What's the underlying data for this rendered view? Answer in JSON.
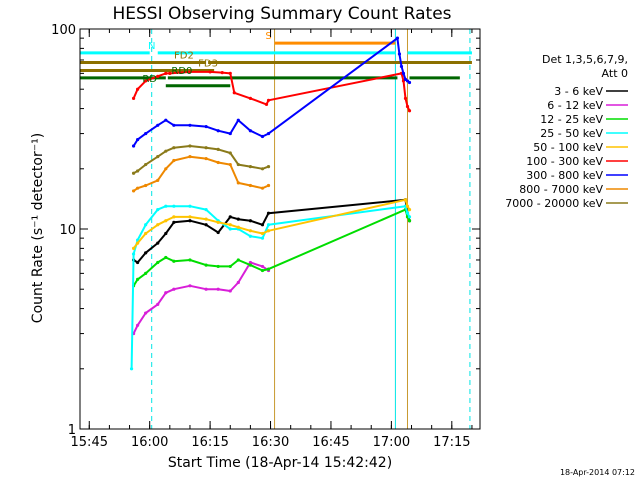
{
  "chart_data": {
    "type": "line",
    "title": "HESSI Observing Summary Count Rates",
    "xlabel": "Start Time (18-Apr-14 15:42:42)",
    "ylabel": "Count Rate (s⁻¹ detector⁻¹)",
    "y_scale": "log",
    "ylim": [
      1,
      100
    ],
    "xlim": [
      "15:42:42",
      "17:22:00"
    ],
    "x_ticks": [
      "15:45",
      "16:00",
      "16:15",
      "16:30",
      "16:45",
      "17:00",
      "17:15"
    ],
    "y_ticks": [
      "1",
      "10",
      "100"
    ],
    "grid": false,
    "legend_title": [
      "Det 1,3,5,6,7,9,",
      "Att 0"
    ],
    "legend_position": "right",
    "footer": "18-Apr-2014 07:12",
    "series": [
      {
        "name": "3 - 6 keV",
        "color": "#000000",
        "x": [
          "15:56:00",
          "15:57:00",
          "15:59:00",
          "16:02:00",
          "16:04:00",
          "16:06:00",
          "16:10:00",
          "16:14:00",
          "16:17:00",
          "16:20:00",
          "16:22:00",
          "16:25:00",
          "16:28:00",
          "16:29:30",
          "17:03:30",
          "17:04:00",
          "17:04:30"
        ],
        "values": [
          7.0,
          6.8,
          7.6,
          8.5,
          9.5,
          10.8,
          11.0,
          10.5,
          9.6,
          11.5,
          11.2,
          11.0,
          10.5,
          12.0,
          14.0,
          12.0,
          11.0
        ]
      },
      {
        "name": "6 - 12 keV",
        "color": "#d81ed8",
        "x": [
          "15:56:00",
          "15:57:00",
          "15:59:00",
          "16:02:00",
          "16:04:00",
          "16:06:00",
          "16:10:00",
          "16:14:00",
          "16:17:00",
          "16:20:00",
          "16:22:00",
          "16:25:00",
          "16:28:00",
          "16:29:30"
        ],
        "values": [
          3.0,
          3.3,
          3.8,
          4.2,
          4.8,
          5.0,
          5.2,
          5.0,
          5.0,
          4.9,
          5.4,
          6.8,
          6.5,
          6.2
        ]
      },
      {
        "name": "12 - 25 keV",
        "color": "#00dd00",
        "x": [
          "15:56:00",
          "15:57:00",
          "15:59:00",
          "16:02:00",
          "16:04:00",
          "16:06:00",
          "16:10:00",
          "16:14:00",
          "16:17:00",
          "16:20:00",
          "16:22:00",
          "16:25:00",
          "16:28:00",
          "16:29:30",
          "17:03:30",
          "17:04:00",
          "17:04:30"
        ],
        "values": [
          5.2,
          5.6,
          6.0,
          6.8,
          7.2,
          6.9,
          7.0,
          6.6,
          6.5,
          6.5,
          7.0,
          6.6,
          6.2,
          6.3,
          12.5,
          11.5,
          11.0
        ]
      },
      {
        "name": "25 - 50 keV",
        "color": "#00ffff",
        "x": [
          "15:55:30",
          "15:56:00",
          "15:57:00",
          "15:59:00",
          "16:02:00",
          "16:04:00",
          "16:06:00",
          "16:10:00",
          "16:14:00",
          "16:17:00",
          "16:20:00",
          "16:22:00",
          "16:25:00",
          "16:28:00",
          "16:29:30",
          "17:03:30",
          "17:04:00",
          "17:04:30"
        ],
        "values": [
          2.0,
          7.5,
          8.8,
          10.5,
          12.5,
          13.0,
          13.0,
          13.0,
          12.5,
          11.0,
          10.0,
          10.0,
          9.2,
          9.0,
          10.5,
          13.0,
          12.0,
          11.5
        ]
      },
      {
        "name": "50 - 100 keV",
        "color": "#ffc400",
        "x": [
          "15:56:00",
          "15:57:00",
          "15:59:00",
          "16:02:00",
          "16:04:00",
          "16:06:00",
          "16:10:00",
          "16:14:00",
          "16:17:00",
          "16:20:00",
          "16:22:00",
          "16:25:00",
          "16:28:00",
          "16:29:30",
          "17:03:30",
          "17:04:00",
          "17:04:30"
        ],
        "values": [
          8.0,
          8.5,
          9.5,
          10.5,
          11.0,
          11.5,
          11.5,
          11.2,
          10.8,
          10.5,
          10.2,
          9.8,
          9.5,
          9.8,
          14.0,
          13.0,
          12.5
        ]
      },
      {
        "name": "100 - 300 keV",
        "color": "#ff0000",
        "x": [
          "15:56:00",
          "15:57:00",
          "15:59:00",
          "16:02:00",
          "16:04:00",
          "16:05:00",
          "16:10:00",
          "16:15:00",
          "16:18:00",
          "16:20:00",
          "16:21:00",
          "16:25:00",
          "16:29:00",
          "16:29:30",
          "17:02:30",
          "17:03:00",
          "17:03:30",
          "17:04:00",
          "17:04:30"
        ],
        "values": [
          45.0,
          50.0,
          55.0,
          58.0,
          60.0,
          60.0,
          61.0,
          61.0,
          60.5,
          60.0,
          48.0,
          45.0,
          42.0,
          44.0,
          60.0,
          55.0,
          45.0,
          41.0,
          39.0
        ]
      },
      {
        "name": "300 - 800 keV",
        "color": "#0000ff",
        "x": [
          "15:56:00",
          "15:57:00",
          "15:59:00",
          "16:02:00",
          "16:04:00",
          "16:06:00",
          "16:10:00",
          "16:14:00",
          "16:17:00",
          "16:20:00",
          "16:22:00",
          "16:25:00",
          "16:28:00",
          "16:29:30",
          "17:01:30",
          "17:02:00",
          "17:02:30",
          "17:03:00",
          "17:03:30",
          "17:04:00",
          "17:04:30"
        ],
        "values": [
          26.0,
          28.0,
          30.0,
          33.0,
          35.0,
          33.0,
          33.0,
          32.5,
          31.0,
          30.0,
          35.0,
          31.0,
          29.0,
          30.0,
          90.0,
          75.0,
          65.0,
          60.0,
          56.0,
          55.0,
          54.0
        ]
      },
      {
        "name": "800 - 7000 keV",
        "color": "#ee8800",
        "x": [
          "15:56:00",
          "15:57:00",
          "15:59:00",
          "16:02:00",
          "16:04:00",
          "16:06:00",
          "16:10:00",
          "16:14:00",
          "16:17:00",
          "16:20:00",
          "16:22:00",
          "16:25:00",
          "16:28:00",
          "16:29:30"
        ],
        "values": [
          15.5,
          16.0,
          16.5,
          17.5,
          20.0,
          22.0,
          23.0,
          22.5,
          21.5,
          21.0,
          17.0,
          16.5,
          16.0,
          16.5
        ]
      },
      {
        "name": "7000 - 20000 keV",
        "color": "#8a7a1a",
        "x": [
          "15:56:00",
          "15:57:00",
          "15:59:00",
          "16:02:00",
          "16:04:00",
          "16:06:00",
          "16:10:00",
          "16:14:00",
          "16:17:00",
          "16:20:00",
          "16:22:00",
          "16:25:00",
          "16:28:00",
          "16:29:30"
        ],
        "values": [
          19.0,
          19.5,
          21.0,
          23.0,
          24.5,
          25.5,
          26.0,
          25.5,
          25.0,
          24.0,
          21.0,
          20.5,
          20.0,
          20.5
        ]
      }
    ],
    "vertical_lines": [
      {
        "x": "15:42:42",
        "color": "#00e5e5",
        "style": "solid"
      },
      {
        "x": "16:00:30",
        "color": "#00e5e5",
        "style": "dashed"
      },
      {
        "x": "16:31:00",
        "color": "#c89a30",
        "style": "solid"
      },
      {
        "x": "17:01:00",
        "color": "#00e5e5",
        "style": "solid"
      },
      {
        "x": "17:04:00",
        "color": "#c89a30",
        "style": "solid"
      },
      {
        "x": "17:19:30",
        "color": "#00e5e5",
        "style": "dashed"
      }
    ],
    "flag_bars": [
      {
        "label": "N",
        "color": "#00ffff",
        "y": 76,
        "segments": [
          [
            "15:42:42",
            "16:00:00"
          ],
          [
            "16:02:00",
            "17:01:00"
          ],
          [
            "17:04:00",
            "17:20:00"
          ]
        ]
      },
      {
        "label": "S",
        "color": "#ff8c00",
        "y": 85,
        "segments": [
          [
            "16:31:00",
            "17:01:00"
          ]
        ]
      },
      {
        "label": "FD2",
        "color": "#8b7000",
        "y": 68,
        "segments": [
          [
            "15:42:42",
            "16:14:00"
          ],
          [
            "16:14:30",
            "17:20:00"
          ]
        ]
      },
      {
        "label": "FD3",
        "color": "#8b7000",
        "y": 62,
        "segments": [
          [
            "15:42:42",
            "16:16:00"
          ]
        ]
      },
      {
        "label": "RD0",
        "color": "#006600",
        "y": 57,
        "segments": [
          [
            "15:42:42",
            "16:04:00"
          ],
          [
            "16:04:30",
            "17:01:30"
          ],
          [
            "17:04:30",
            "17:17:00"
          ]
        ]
      },
      {
        "label": "RD",
        "color": "#006600",
        "y": 52,
        "segments": [
          [
            "16:04:00",
            "16:20:00"
          ]
        ]
      }
    ]
  }
}
